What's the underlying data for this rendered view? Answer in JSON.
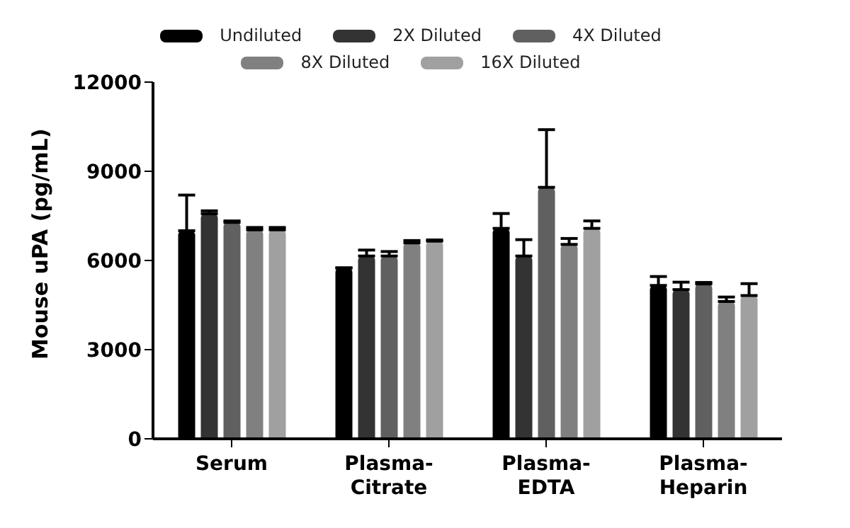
{
  "chart_data": {
    "type": "bar",
    "ylabel": "Mouse uPA (pg/mL)",
    "categories": [
      "Serum",
      "Plasma-Citrate",
      "Plasma-EDTA",
      "Plasma-Heparin"
    ],
    "series": [
      {
        "name": "Undiluted",
        "color": "#000000",
        "values": [
          7000,
          5750,
          7080,
          5160
        ],
        "errors": [
          [
            7000,
            8200
          ],
          [
            5750,
            5750
          ],
          [
            7080,
            7580
          ],
          [
            5160,
            5460
          ]
        ]
      },
      {
        "name": "2X Diluted",
        "color": "#333333",
        "values": [
          7570,
          6150,
          6150,
          5020
        ],
        "errors": [
          [
            7570,
            7670
          ],
          [
            6150,
            6350
          ],
          [
            6150,
            6700
          ],
          [
            5020,
            5270
          ]
        ]
      },
      {
        "name": "4X Diluted",
        "color": "#606060",
        "values": [
          7280,
          6150,
          8460,
          5210
        ],
        "errors": [
          [
            7280,
            7330
          ],
          [
            6150,
            6300
          ],
          [
            8460,
            10400
          ],
          [
            5210,
            5260
          ]
        ]
      },
      {
        "name": "8X Diluted",
        "color": "#808080",
        "values": [
          7030,
          6590,
          6540,
          4620
        ],
        "errors": [
          [
            7030,
            7110
          ],
          [
            6590,
            6670
          ],
          [
            6540,
            6740
          ],
          [
            4620,
            4770
          ]
        ]
      },
      {
        "name": "16X Diluted",
        "color": "#a0a0a0",
        "values": [
          7030,
          6650,
          7080,
          4820
        ],
        "errors": [
          [
            7030,
            7110
          ],
          [
            6650,
            6690
          ],
          [
            7080,
            7330
          ],
          [
            4820,
            5220
          ]
        ]
      }
    ],
    "ylim": [
      0,
      12000
    ],
    "yticks": [
      0,
      3000,
      6000,
      9000,
      12000
    ],
    "grid": false,
    "legend": "top"
  }
}
